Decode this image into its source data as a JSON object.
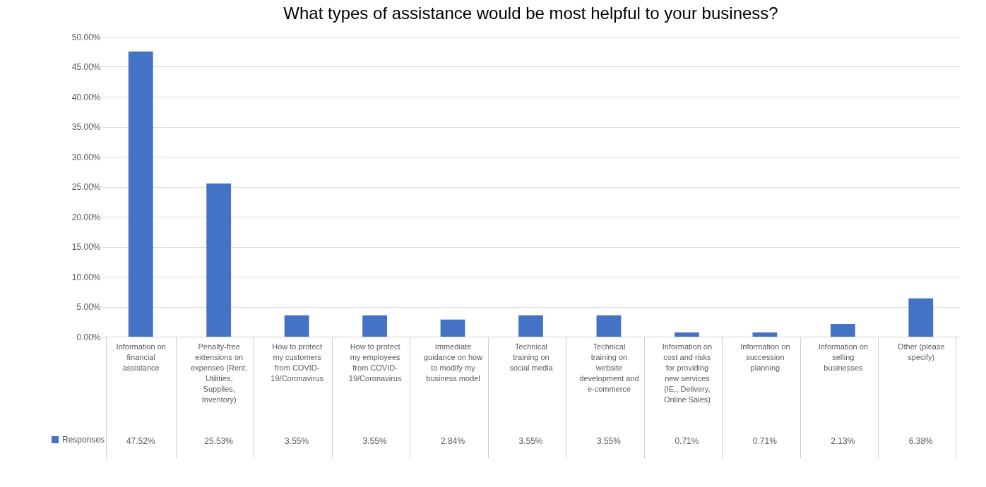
{
  "chart_data": {
    "type": "bar",
    "title": "What types of assistance would be most helpful to your business?",
    "categories": [
      "Information on financial assistance",
      "Penalty-free extensions on expenses (Rent, Utilities, Supplies, Inventory)",
      "How to protect my customers from COVID-19/Coronavirus",
      "How to protect my employees from COVID-19/Coronavirus",
      "Immediate guidance on how to modify my business model",
      "Technical training on social media",
      "Technical training on website development and e-commerce",
      "Information on cost and risks for providing new services (IE., Delivery, Online Sales)",
      "Information on succession planning",
      "Information on selling businesses",
      "Other (please specify)"
    ],
    "series": [
      {
        "name": "Responses",
        "color": "#4472c4",
        "values": [
          47.52,
          25.53,
          3.55,
          3.55,
          2.84,
          3.55,
          3.55,
          0.71,
          0.71,
          2.13,
          6.38
        ],
        "value_labels": [
          "47.52%",
          "25.53%",
          "3.55%",
          "3.55%",
          "2.84%",
          "3.55%",
          "3.55%",
          "0.71%",
          "0.71%",
          "2.13%",
          "6.38%"
        ]
      }
    ],
    "ylim": [
      0,
      50
    ],
    "yticks": [
      {
        "value": 0,
        "label": "0.00%"
      },
      {
        "value": 5,
        "label": "5.00%"
      },
      {
        "value": 10,
        "label": "10.00%"
      },
      {
        "value": 15,
        "label": "15.00%"
      },
      {
        "value": 20,
        "label": "20.00%"
      },
      {
        "value": 25,
        "label": "25.00%"
      },
      {
        "value": 30,
        "label": "30.00%"
      },
      {
        "value": 35,
        "label": "35.00%"
      },
      {
        "value": 40,
        "label": "40.00%"
      },
      {
        "value": 45,
        "label": "45.00%"
      },
      {
        "value": 50,
        "label": "50.00%"
      }
    ],
    "grid": "y",
    "legend": "bottom left"
  }
}
